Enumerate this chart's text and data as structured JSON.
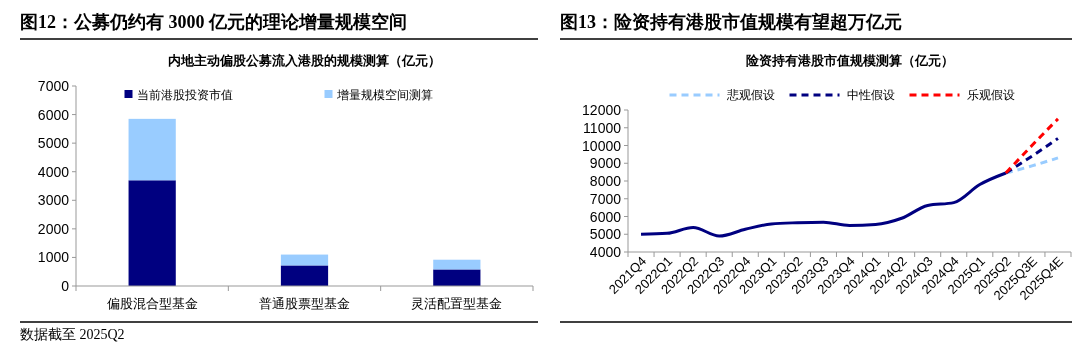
{
  "chart_data": [
    {
      "type": "bar",
      "title": "图12：公募仍约有 3000 亿元的理论增量规模空间",
      "subtitle": "内地主动偏股公募流入港股的规模测算（亿元）",
      "categories": [
        "偏股混合型基金",
        "普通股票型基金",
        "灵活配置型基金"
      ],
      "stacked": true,
      "series": [
        {
          "name": "当前港股投资市值",
          "color": "#000080",
          "values": [
            3700,
            720,
            580
          ]
        },
        {
          "name": "增量规模空间测算",
          "color": "#99ccff",
          "values": [
            2150,
            380,
            340
          ]
        }
      ],
      "ylim": [
        0,
        7000
      ],
      "yticks": [
        0,
        1000,
        2000,
        3000,
        4000,
        5000,
        6000,
        7000
      ],
      "legend": "top",
      "annotations": [
        "数据截至 2025Q2"
      ]
    },
    {
      "type": "line",
      "title": "图13：险资持有港股市值规模有望超万亿元",
      "subtitle": "险资持有港股市值规模测算（亿元）",
      "categories": [
        "2021Q4",
        "2022Q1",
        "2022Q2",
        "2022Q3",
        "2022Q4",
        "2023Q1",
        "2023Q2",
        "2023Q3",
        "2023Q4",
        "2024Q1",
        "2024Q2",
        "2024Q3",
        "2024Q4",
        "2025Q1",
        "2025Q2",
        "2025Q3E",
        "2025Q4E"
      ],
      "series": [
        {
          "color": "#000080",
          "line_style": "solid",
          "values": [
            5000,
            5050,
            5380,
            4900,
            5280,
            5580,
            5650,
            5680,
            5500,
            5550,
            5900,
            6620,
            6780,
            7800,
            8450,
            null,
            null
          ]
        },
        {
          "name": "悲观假设",
          "color": "#99ccff",
          "line_style": "dashed",
          "values": [
            null,
            null,
            null,
            null,
            null,
            null,
            null,
            null,
            null,
            null,
            null,
            null,
            null,
            null,
            8450,
            8850,
            9300
          ]
        },
        {
          "name": "中性假设",
          "color": "#000080",
          "line_style": "dashed",
          "values": [
            null,
            null,
            null,
            null,
            null,
            null,
            null,
            null,
            null,
            null,
            null,
            null,
            null,
            null,
            8450,
            9400,
            10400
          ]
        },
        {
          "name": "乐观假设",
          "color": "#ff0000",
          "line_style": "dashed",
          "values": [
            null,
            null,
            null,
            null,
            null,
            null,
            null,
            null,
            null,
            null,
            null,
            null,
            null,
            null,
            8450,
            10000,
            11500
          ]
        }
      ],
      "ylim": [
        4000,
        12000
      ],
      "yticks": [
        4000,
        5000,
        6000,
        7000,
        8000,
        9000,
        10000,
        11000,
        12000
      ],
      "legend": "top"
    }
  ]
}
